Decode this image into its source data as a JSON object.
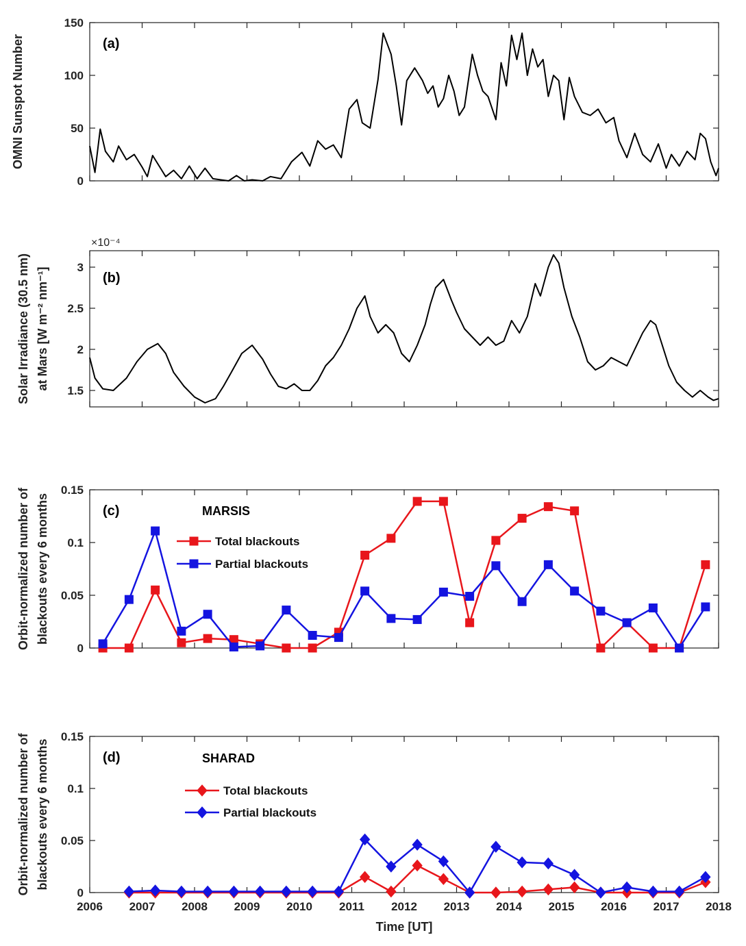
{
  "figure": {
    "xlabel": "Time [UT]"
  },
  "chart_data": [
    {
      "id": "a",
      "type": "line",
      "panel_label": "(a)",
      "ylabel": [
        "OMNI Sunspot Number"
      ],
      "xlim": [
        2006,
        2018
      ],
      "ylim": [
        0,
        150
      ],
      "yticks": [
        0,
        50,
        100,
        150
      ],
      "series": [
        {
          "color": "#000000",
          "x": [
            2006.0,
            2006.1,
            2006.2,
            2006.3,
            2006.45,
            2006.55,
            2006.7,
            2006.85,
            2007.0,
            2007.1,
            2007.2,
            2007.35,
            2007.45,
            2007.6,
            2007.75,
            2007.9,
            2008.05,
            2008.2,
            2008.35,
            2008.5,
            2008.65,
            2008.8,
            2008.95,
            2009.1,
            2009.3,
            2009.45,
            2009.65,
            2009.85,
            2010.05,
            2010.2,
            2010.35,
            2010.5,
            2010.65,
            2010.8,
            2010.95,
            2011.1,
            2011.2,
            2011.35,
            2011.5,
            2011.6,
            2011.75,
            2011.85,
            2011.95,
            2012.05,
            2012.2,
            2012.35,
            2012.45,
            2012.55,
            2012.65,
            2012.75,
            2012.85,
            2012.95,
            2013.05,
            2013.15,
            2013.3,
            2013.4,
            2013.5,
            2013.6,
            2013.75,
            2013.85,
            2013.95,
            2014.05,
            2014.15,
            2014.25,
            2014.35,
            2014.45,
            2014.55,
            2014.65,
            2014.75,
            2014.85,
            2014.95,
            2015.05,
            2015.15,
            2015.25,
            2015.4,
            2015.55,
            2015.7,
            2015.85,
            2016.0,
            2016.1,
            2016.25,
            2016.4,
            2016.55,
            2016.7,
            2016.85,
            2017.0,
            2017.1,
            2017.25,
            2017.4,
            2017.55,
            2017.65,
            2017.75,
            2017.85,
            2017.95,
            2018.0
          ],
          "y": [
            33,
            8,
            49,
            28,
            18,
            33,
            20,
            25,
            13,
            4,
            24,
            12,
            4,
            10,
            2,
            14,
            2,
            12,
            2,
            1,
            0,
            5,
            0,
            1,
            0,
            4,
            2,
            18,
            27,
            14,
            38,
            30,
            34,
            22,
            68,
            77,
            55,
            50,
            96,
            140,
            120,
            90,
            53,
            95,
            107,
            95,
            83,
            90,
            70,
            78,
            100,
            85,
            62,
            70,
            120,
            100,
            85,
            80,
            58,
            112,
            90,
            138,
            115,
            140,
            100,
            125,
            108,
            115,
            80,
            100,
            95,
            58,
            98,
            80,
            65,
            62,
            68,
            55,
            60,
            38,
            22,
            45,
            25,
            18,
            35,
            12,
            25,
            14,
            28,
            20,
            45,
            40,
            18,
            5,
            12
          ]
        }
      ]
    },
    {
      "id": "b",
      "type": "line",
      "panel_label": "(b)",
      "ylabel": [
        "Solar Irradiance (30.5 nm)",
        "at Mars [W m⁻² nm⁻¹]"
      ],
      "exponent": "×10⁻⁴",
      "xlim": [
        2006,
        2018
      ],
      "ylim": [
        1.3,
        3.2
      ],
      "yticks": [
        1.5,
        2,
        2.5,
        3
      ],
      "series": [
        {
          "color": "#000000",
          "x": [
            2006.0,
            2006.1,
            2006.25,
            2006.45,
            2006.7,
            2006.9,
            2007.1,
            2007.3,
            2007.45,
            2007.6,
            2007.8,
            2008.0,
            2008.2,
            2008.4,
            2008.55,
            2008.7,
            2008.9,
            2009.1,
            2009.3,
            2009.45,
            2009.6,
            2009.75,
            2009.9,
            2010.05,
            2010.2,
            2010.35,
            2010.5,
            2010.65,
            2010.8,
            2010.95,
            2011.1,
            2011.25,
            2011.35,
            2011.5,
            2011.65,
            2011.8,
            2011.95,
            2012.1,
            2012.25,
            2012.4,
            2012.5,
            2012.6,
            2012.75,
            2012.9,
            2013.0,
            2013.15,
            2013.3,
            2013.45,
            2013.6,
            2013.75,
            2013.9,
            2014.05,
            2014.2,
            2014.35,
            2014.5,
            2014.6,
            2014.75,
            2014.85,
            2014.95,
            2015.05,
            2015.2,
            2015.35,
            2015.5,
            2015.65,
            2015.8,
            2015.95,
            2016.1,
            2016.25,
            2016.4,
            2016.55,
            2016.7,
            2016.8,
            2016.9,
            2017.05,
            2017.2,
            2017.35,
            2017.5,
            2017.65,
            2017.8,
            2017.9,
            2018.0
          ],
          "y": [
            1.9,
            1.65,
            1.52,
            1.5,
            1.65,
            1.85,
            2.0,
            2.07,
            1.95,
            1.72,
            1.55,
            1.42,
            1.35,
            1.4,
            1.55,
            1.72,
            1.95,
            2.05,
            1.88,
            1.7,
            1.55,
            1.52,
            1.58,
            1.5,
            1.5,
            1.62,
            1.8,
            1.9,
            2.05,
            2.25,
            2.5,
            2.65,
            2.4,
            2.2,
            2.3,
            2.2,
            1.95,
            1.85,
            2.05,
            2.3,
            2.55,
            2.75,
            2.85,
            2.6,
            2.45,
            2.25,
            2.15,
            2.05,
            2.15,
            2.05,
            2.1,
            2.35,
            2.2,
            2.4,
            2.8,
            2.65,
            3.0,
            3.15,
            3.05,
            2.75,
            2.4,
            2.15,
            1.85,
            1.75,
            1.8,
            1.9,
            1.85,
            1.8,
            2.0,
            2.2,
            2.35,
            2.3,
            2.1,
            1.8,
            1.6,
            1.5,
            1.42,
            1.5,
            1.42,
            1.38,
            1.4
          ]
        }
      ]
    },
    {
      "id": "c",
      "type": "line",
      "panel_label": "(c)",
      "title": "MARSIS",
      "ylabel": [
        "Orbit-normalized number of",
        "blackouts every 6 months"
      ],
      "xlim": [
        2006,
        2018
      ],
      "ylim": [
        0,
        0.15
      ],
      "yticks": [
        0,
        0.05,
        0.1,
        0.15
      ],
      "ytick_labels": [
        "0",
        "0.05",
        "0.1",
        "0.15"
      ],
      "legend": "upper-left",
      "marker": "square",
      "series": [
        {
          "name": "Total blackouts",
          "color": "#e8161b",
          "x": [
            2006.25,
            2006.75,
            2007.25,
            2007.75,
            2008.25,
            2008.75,
            2009.25,
            2009.75,
            2010.25,
            2010.75,
            2011.25,
            2011.75,
            2012.25,
            2012.75,
            2013.25,
            2013.75,
            2014.25,
            2014.75,
            2015.25,
            2015.75,
            2016.25,
            2016.75,
            2017.25,
            2017.75
          ],
          "y": [
            0,
            0,
            0.055,
            0.005,
            0.009,
            0.008,
            0.004,
            0,
            0,
            0.015,
            0.088,
            0.104,
            0.139,
            0.139,
            0.024,
            0.102,
            0.123,
            0.134,
            0.13,
            0,
            0.024,
            0,
            0,
            0.079
          ]
        },
        {
          "name": "Partial blackouts",
          "color": "#1414e0",
          "x": [
            2006.25,
            2006.75,
            2007.25,
            2007.75,
            2008.25,
            2008.75,
            2009.25,
            2009.75,
            2010.25,
            2010.75,
            2011.25,
            2011.75,
            2012.25,
            2012.75,
            2013.25,
            2013.75,
            2014.25,
            2014.75,
            2015.25,
            2015.75,
            2016.25,
            2016.75,
            2017.25,
            2017.75
          ],
          "y": [
            0.004,
            0.046,
            0.111,
            0.016,
            0.032,
            0.001,
            0.002,
            0.036,
            0.012,
            0.01,
            0.054,
            0.028,
            0.027,
            0.053,
            0.049,
            0.078,
            0.044,
            0.079,
            0.054,
            0.035,
            0.024,
            0.038,
            0,
            0.039
          ]
        }
      ]
    },
    {
      "id": "d",
      "type": "line",
      "panel_label": "(d)",
      "title": "SHARAD",
      "ylabel": [
        "Orbit-normalized number of",
        "blackouts every 6 months"
      ],
      "xlim": [
        2006,
        2018
      ],
      "ylim": [
        0,
        0.15
      ],
      "yticks": [
        0,
        0.05,
        0.1,
        0.15
      ],
      "ytick_labels": [
        "0",
        "0.05",
        "0.1",
        "0.15"
      ],
      "xticks": [
        2006,
        2007,
        2008,
        2009,
        2010,
        2011,
        2012,
        2013,
        2014,
        2015,
        2016,
        2017,
        2018
      ],
      "legend": "upper-left",
      "marker": "diamond",
      "series": [
        {
          "name": "Total blackouts",
          "color": "#e8161b",
          "x": [
            2006.75,
            2007.25,
            2007.75,
            2008.25,
            2008.75,
            2009.25,
            2009.75,
            2010.25,
            2010.75,
            2011.25,
            2011.75,
            2012.25,
            2012.75,
            2013.25,
            2013.75,
            2014.25,
            2014.75,
            2015.25,
            2015.75,
            2016.25,
            2016.75,
            2017.25,
            2017.75
          ],
          "y": [
            0,
            0,
            0,
            0,
            0,
            0,
            0,
            0,
            0,
            0.015,
            0.001,
            0.026,
            0.013,
            0,
            0,
            0.001,
            0.003,
            0.005,
            0,
            0,
            0,
            0,
            0.01
          ]
        },
        {
          "name": "Partial blackouts",
          "color": "#1414e0",
          "x": [
            2006.75,
            2007.25,
            2007.75,
            2008.25,
            2008.75,
            2009.25,
            2009.75,
            2010.25,
            2010.75,
            2011.25,
            2011.75,
            2012.25,
            2012.75,
            2013.25,
            2013.75,
            2014.25,
            2014.75,
            2015.25,
            2015.75,
            2016.25,
            2016.75,
            2017.25,
            2017.75
          ],
          "y": [
            0.001,
            0.002,
            0.001,
            0.001,
            0.001,
            0.001,
            0.001,
            0.001,
            0.001,
            0.051,
            0.025,
            0.046,
            0.03,
            0,
            0.044,
            0.029,
            0.028,
            0.017,
            0,
            0.005,
            0.001,
            0.001,
            0.015
          ]
        }
      ]
    }
  ]
}
